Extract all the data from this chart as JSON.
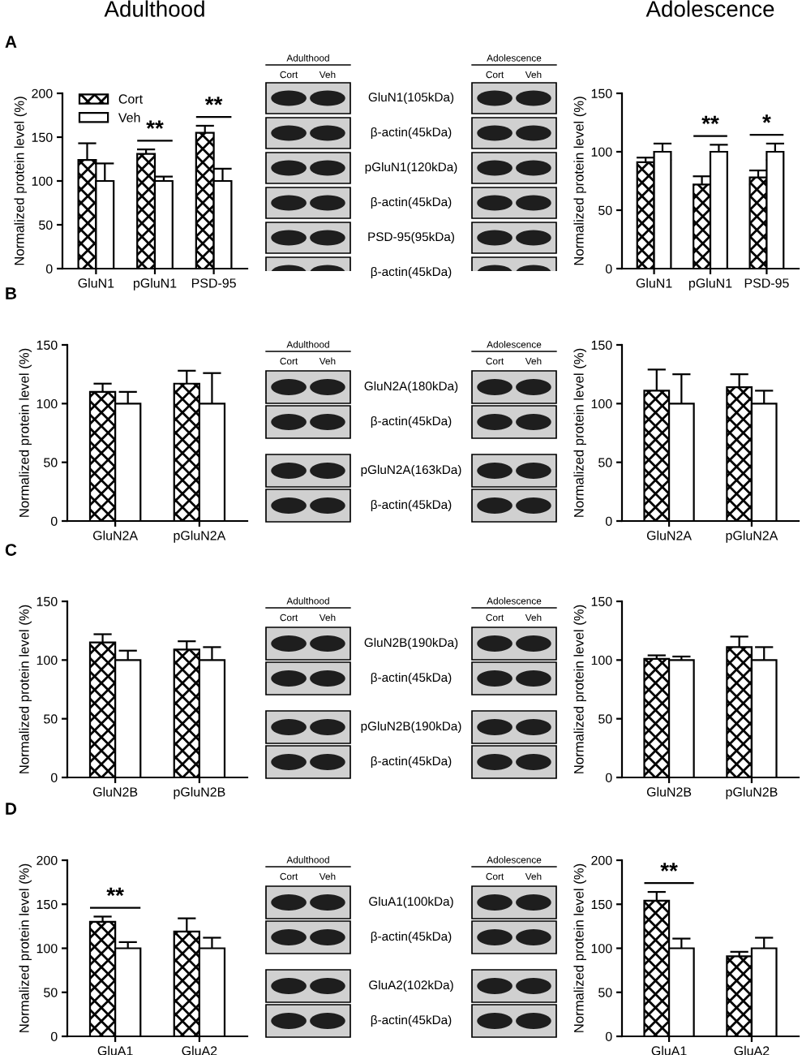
{
  "chart_data": [
    {
      "type": "bar",
      "title": "Adulthood",
      "ylabel": "Normalized protein level (%)",
      "categories": [
        "GluN1",
        "pGluN1",
        "PSD-95"
      ],
      "ylim": [
        0,
        200
      ],
      "yticks": [
        0,
        50,
        100,
        150,
        200
      ],
      "legend": "top left",
      "grid": false,
      "series": [
        {
          "name": "Cort",
          "color": "#000000",
          "values": [
            124,
            131,
            155
          ],
          "errors": [
            19,
            5,
            8
          ]
        },
        {
          "name": "Veh",
          "color": "#ffffff",
          "values": [
            100,
            100,
            100
          ],
          "errors": [
            20,
            5,
            14
          ]
        }
      ],
      "annotations": [
        "A",
        "**",
        "**"
      ]
    },
    {
      "type": "other",
      "categories": [
        "GluN1(105kDa)",
        "β-actin(45kDa)",
        "pGluN1(120kDa)",
        "β-actin(45kDa)",
        "PSD-95(95kDa)",
        "β-actin(45kDa)"
      ],
      "annotations": [
        "Adulthood",
        "Cort",
        "Veh",
        "Adolescence",
        "Cort",
        "Veh"
      ]
    },
    {
      "type": "bar",
      "title": "Adolescence",
      "ylabel": "Normalized protein level (%)",
      "categories": [
        "GluN1",
        "pGluN1",
        "PSD-95"
      ],
      "ylim": [
        0,
        150
      ],
      "yticks": [
        0,
        50,
        100,
        150
      ],
      "grid": false,
      "series": [
        {
          "color": "#000000",
          "values": [
            91,
            72,
            78
          ],
          "errors": [
            4,
            7,
            6
          ]
        },
        {
          "color": "#ffffff",
          "values": [
            100,
            100,
            100
          ],
          "errors": [
            7,
            6,
            7
          ]
        }
      ],
      "annotations": [
        "**",
        "*"
      ]
    },
    {
      "type": "bar",
      "ylabel": "Normalized protein level (%)",
      "categories": [
        "GluN2A",
        "pGluN2A"
      ],
      "ylim": [
        0,
        150
      ],
      "yticks": [
        0,
        50,
        100,
        150
      ],
      "grid": false,
      "series": [
        {
          "color": "#000000",
          "values": [
            110,
            117
          ],
          "errors": [
            7,
            11
          ]
        },
        {
          "color": "#ffffff",
          "values": [
            100,
            100
          ],
          "errors": [
            10,
            26
          ]
        }
      ],
      "annotations": [
        "B"
      ]
    },
    {
      "type": "other",
      "categories": [
        "GluN2A(180kDa)",
        "β-actin(45kDa)",
        "pGluN2A(163kDa)",
        "β-actin(45kDa)"
      ],
      "annotations": [
        "Adulthood",
        "Cort",
        "Veh",
        "Adolescence",
        "Cort",
        "Veh"
      ]
    },
    {
      "type": "bar",
      "ylabel": "Normalized protein level (%)",
      "categories": [
        "GluN2A",
        "pGluN2A"
      ],
      "ylim": [
        0,
        150
      ],
      "yticks": [
        0,
        50,
        100,
        150
      ],
      "grid": false,
      "series": [
        {
          "color": "#000000",
          "values": [
            111,
            114
          ],
          "errors": [
            18,
            11
          ]
        },
        {
          "color": "#ffffff",
          "values": [
            100,
            100
          ],
          "errors": [
            25,
            11
          ]
        }
      ]
    },
    {
      "type": "bar",
      "ylabel": "Normalized protein level (%)",
      "categories": [
        "GluN2B",
        "pGluN2B"
      ],
      "ylim": [
        0,
        150
      ],
      "yticks": [
        0,
        50,
        100,
        150
      ],
      "grid": false,
      "series": [
        {
          "color": "#000000",
          "values": [
            115,
            109
          ],
          "errors": [
            7,
            7
          ]
        },
        {
          "color": "#ffffff",
          "values": [
            100,
            100
          ],
          "errors": [
            8,
            11
          ]
        }
      ],
      "annotations": [
        "C"
      ]
    },
    {
      "type": "other",
      "categories": [
        "GluN2B(190kDa)",
        "β-actin(45kDa)",
        "pGluN2B(190kDa)",
        "β-actin(45kDa)"
      ],
      "annotations": [
        "Adulthood",
        "Cort",
        "Veh",
        "Adolescence",
        "Cort",
        "Veh"
      ]
    },
    {
      "type": "bar",
      "ylabel": "Normalized protein level (%)",
      "categories": [
        "GluN2B",
        "pGluN2B"
      ],
      "ylim": [
        0,
        150
      ],
      "yticks": [
        0,
        50,
        100,
        150
      ],
      "grid": false,
      "series": [
        {
          "color": "#000000",
          "values": [
            101,
            111
          ],
          "errors": [
            3,
            9
          ]
        },
        {
          "color": "#ffffff",
          "values": [
            100,
            100
          ],
          "errors": [
            3,
            11
          ]
        }
      ]
    },
    {
      "type": "bar",
      "ylabel": "Normalized protein level (%)",
      "categories": [
        "GluA1",
        "GluA2"
      ],
      "ylim": [
        0,
        200
      ],
      "yticks": [
        0,
        50,
        100,
        150,
        200
      ],
      "grid": false,
      "series": [
        {
          "color": "#000000",
          "values": [
            130,
            119
          ],
          "errors": [
            6,
            15
          ]
        },
        {
          "color": "#ffffff",
          "values": [
            100,
            100
          ],
          "errors": [
            7,
            12
          ]
        }
      ],
      "annotations": [
        "D",
        "**"
      ]
    },
    {
      "type": "other",
      "categories": [
        "GluA1(100kDa)",
        "β-actin(45kDa)",
        "GluA2(102kDa)",
        "β-actin(45kDa)"
      ],
      "annotations": [
        "Adulthood",
        "Cort",
        "Veh",
        "Adolescence",
        "Cort",
        "Veh"
      ]
    },
    {
      "type": "bar",
      "ylabel": "Normalized protein level (%)",
      "categories": [
        "GluA1",
        "GluA2"
      ],
      "ylim": [
        0,
        200
      ],
      "yticks": [
        0,
        50,
        100,
        150,
        200
      ],
      "grid": false,
      "series": [
        {
          "color": "#000000",
          "values": [
            154,
            91
          ],
          "errors": [
            10,
            5
          ]
        },
        {
          "color": "#ffffff",
          "values": [
            100,
            100
          ],
          "errors": [
            11,
            12
          ]
        }
      ],
      "annotations": [
        "**"
      ]
    }
  ]
}
